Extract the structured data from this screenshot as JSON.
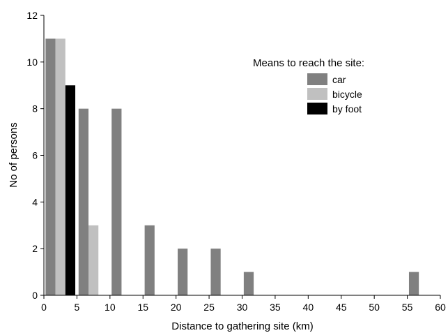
{
  "chart_data": {
    "type": "bar",
    "xlabel": "Distance to gathering site (km)",
    "ylabel": "No of persons",
    "xlim": [
      0,
      60
    ],
    "ylim": [
      0,
      12
    ],
    "xticks": [
      "0",
      "5",
      "10",
      "15",
      "20",
      "25",
      "30",
      "35",
      "40",
      "45",
      "50",
      "55",
      "60"
    ],
    "yticks": [
      "0",
      "2",
      "4",
      "6",
      "8",
      "10",
      "12"
    ],
    "grid": false,
    "legend": {
      "title": "Means to reach the site:",
      "placement": "top-right"
    },
    "series": [
      {
        "name": "car",
        "color": "#808080",
        "points": [
          {
            "x": 1,
            "value": 11
          },
          {
            "x": 6,
            "value": 8
          },
          {
            "x": 11,
            "value": 8
          },
          {
            "x": 16,
            "value": 3
          },
          {
            "x": 21,
            "value": 2
          },
          {
            "x": 26,
            "value": 2
          },
          {
            "x": 31,
            "value": 1
          },
          {
            "x": 56,
            "value": 1
          }
        ]
      },
      {
        "name": "bicycle",
        "color": "#c0c0c0",
        "points": [
          {
            "x": 2.5,
            "value": 11
          },
          {
            "x": 7.5,
            "value": 3
          }
        ]
      },
      {
        "name": "by foot",
        "color": "#000000",
        "points": [
          {
            "x": 4,
            "value": 9
          }
        ]
      }
    ]
  }
}
